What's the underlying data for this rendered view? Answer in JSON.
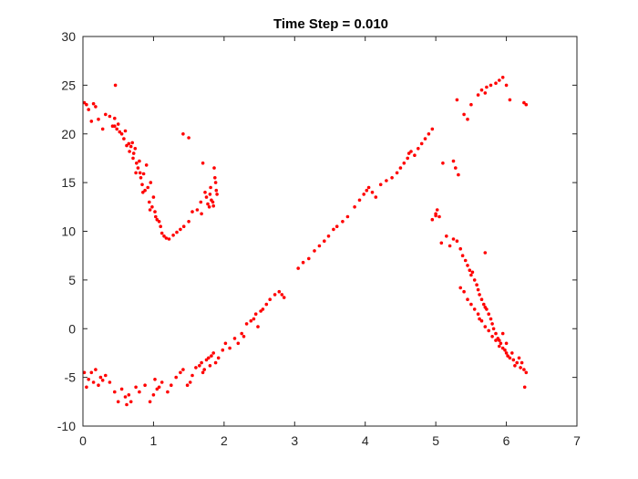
{
  "chart_data": {
    "type": "scatter",
    "title": "Time Step = 0.010",
    "xlabel": "",
    "ylabel": "",
    "xlim": [
      0,
      7
    ],
    "ylim": [
      -10,
      30
    ],
    "xticks": [
      0,
      1,
      2,
      3,
      4,
      5,
      6,
      7
    ],
    "yticks": [
      -10,
      -5,
      0,
      5,
      10,
      15,
      20,
      25,
      30
    ],
    "grid": false,
    "legend": "none",
    "marker_color": "#ff0000",
    "series": [
      {
        "x": [
          0.02,
          0.05,
          0.08,
          0.12,
          0.15,
          0.18,
          0.22,
          0.28,
          0.32,
          0.38,
          0.42,
          0.45,
          0.46,
          0.48,
          0.5,
          0.52,
          0.55,
          0.58,
          0.6,
          0.62,
          0.65,
          0.66,
          0.68,
          0.7,
          0.71,
          0.72,
          0.74,
          0.76,
          0.78,
          0.8,
          0.81,
          0.82,
          0.84,
          0.86,
          0.88,
          0.9,
          0.92,
          0.94,
          0.96,
          0.98,
          1.0,
          1.02,
          1.05,
          1.08,
          1.1,
          1.12,
          1.15,
          1.18,
          1.22,
          1.28,
          1.33,
          1.38,
          1.43,
          1.5,
          1.55,
          1.62,
          1.67,
          1.7,
          1.73,
          1.75,
          1.77,
          1.79,
          1.8,
          1.81,
          1.82,
          1.84,
          1.85,
          1.86,
          1.87,
          1.88,
          1.89,
          1.9,
          0.45,
          1.42,
          1.5,
          1.68,
          0.75,
          0.85,
          0.95,
          1.03
        ],
        "y": [
          23.2,
          23.0,
          22.5,
          21.3,
          23.1,
          22.8,
          21.5,
          20.5,
          22.0,
          21.8,
          20.8,
          21.6,
          25.0,
          20.5,
          21.0,
          20.2,
          20.0,
          19.5,
          20.3,
          18.8,
          19.0,
          18.2,
          18.7,
          19.1,
          17.5,
          18.0,
          18.5,
          17.0,
          16.5,
          17.2,
          16.0,
          15.5,
          14.8,
          15.9,
          14.2,
          16.8,
          14.5,
          13.0,
          15.0,
          12.5,
          13.5,
          12.0,
          11.2,
          11.0,
          10.5,
          9.8,
          9.5,
          9.3,
          9.2,
          9.6,
          9.9,
          10.2,
          10.5,
          11.0,
          12.0,
          12.2,
          13.0,
          17.0,
          14.0,
          13.5,
          12.8,
          12.5,
          13.8,
          14.5,
          13.2,
          13.0,
          12.6,
          16.5,
          15.5,
          15.0,
          14.2,
          13.8,
          20.8,
          20.0,
          19.6,
          11.8,
          16.0,
          14.0,
          12.2,
          11.5
        ]
      },
      {
        "x": [
          0.02,
          0.05,
          0.08,
          0.12,
          0.15,
          0.18,
          0.22,
          0.25,
          0.28,
          0.32,
          0.38,
          0.45,
          0.5,
          0.55,
          0.6,
          0.62,
          0.65,
          0.68,
          0.75,
          0.8,
          0.88,
          0.95,
          1.0,
          1.02,
          1.05,
          1.08,
          1.12,
          1.2,
          1.25,
          1.32,
          1.38,
          1.42,
          1.48,
          1.52,
          1.55,
          1.6,
          1.65,
          1.68,
          1.7,
          1.72,
          1.75,
          1.78,
          1.8,
          1.82,
          1.85,
          1.88,
          1.92,
          1.98,
          2.02,
          2.08,
          2.15,
          2.2,
          2.25,
          2.28,
          2.32,
          2.38,
          2.42,
          2.45,
          2.48,
          2.52,
          2.55,
          2.6,
          2.65,
          2.72,
          2.78,
          2.82,
          2.85,
          3.05,
          3.12,
          3.2,
          3.28,
          3.35,
          3.42,
          3.48,
          3.55,
          3.6,
          3.68,
          3.75,
          3.85,
          3.92,
          3.98,
          4.02,
          4.05,
          4.1,
          4.15,
          4.22,
          4.3,
          4.38,
          4.45,
          4.5,
          4.55,
          4.6,
          4.62,
          4.65,
          4.7,
          4.75,
          4.8,
          4.85,
          4.9,
          4.95
        ],
        "y": [
          -4.5,
          -6.0,
          -5.2,
          -4.5,
          -5.5,
          -4.2,
          -5.8,
          -5.0,
          -5.3,
          -4.8,
          -5.5,
          -6.5,
          -7.5,
          -6.2,
          -7.0,
          -7.8,
          -6.8,
          -7.5,
          -6.0,
          -6.5,
          -5.8,
          -7.5,
          -6.8,
          -5.2,
          -6.2,
          -6.0,
          -5.5,
          -6.5,
          -5.8,
          -5.0,
          -4.5,
          -4.2,
          -5.8,
          -5.5,
          -4.8,
          -4.0,
          -3.8,
          -3.5,
          -4.5,
          -4.2,
          -3.2,
          -3.0,
          -3.8,
          -2.8,
          -2.5,
          -3.5,
          -3.0,
          -2.2,
          -1.5,
          -2.0,
          -1.0,
          -1.5,
          -0.5,
          -0.8,
          0.5,
          0.8,
          1.0,
          1.5,
          0.2,
          1.8,
          2.0,
          2.5,
          3.0,
          3.5,
          3.8,
          3.5,
          3.2,
          6.2,
          6.8,
          7.2,
          8.0,
          8.5,
          9.0,
          9.5,
          10.2,
          10.5,
          11.0,
          11.5,
          12.5,
          13.2,
          13.8,
          14.2,
          14.5,
          14.0,
          13.5,
          14.8,
          15.2,
          15.5,
          16.0,
          16.5,
          17.0,
          17.5,
          18.0,
          18.2,
          17.8,
          18.5,
          19.0,
          19.5,
          20.0,
          20.5
        ]
      },
      {
        "x": [
          5.0,
          5.02,
          5.05,
          5.08,
          5.15,
          5.2,
          5.25,
          5.3,
          5.35,
          5.38,
          5.42,
          5.45,
          5.48,
          5.5,
          5.52,
          5.55,
          5.58,
          5.6,
          5.62,
          5.65,
          5.68,
          5.7,
          5.72,
          5.75,
          5.78,
          5.8,
          5.82,
          5.85,
          5.88,
          5.9,
          5.92,
          5.95,
          5.98,
          6.0,
          6.05,
          6.1,
          6.15,
          6.2,
          6.25,
          6.28,
          5.35,
          5.4,
          5.45,
          5.5,
          5.55,
          5.6,
          5.62,
          5.65,
          5.7,
          5.75,
          5.8,
          5.85,
          5.9,
          5.95,
          6.0,
          6.02,
          6.08,
          6.12,
          6.18,
          6.22,
          6.26,
          4.95,
          5.0,
          5.1,
          5.3,
          5.5,
          5.25,
          5.28,
          5.32,
          5.4,
          5.45,
          5.6,
          5.65,
          5.7,
          5.72,
          5.78,
          5.85,
          5.9,
          5.95,
          6.0,
          6.05,
          6.25,
          6.28,
          5.7
        ],
        "y": [
          11.8,
          12.2,
          11.5,
          8.8,
          9.5,
          8.5,
          9.2,
          9.0,
          8.2,
          7.5,
          7.0,
          6.5,
          6.0,
          5.5,
          5.8,
          5.0,
          4.5,
          4.0,
          3.5,
          3.0,
          2.5,
          2.2,
          2.0,
          1.5,
          1.0,
          0.5,
          0.0,
          -0.5,
          -1.0,
          -1.2,
          -1.5,
          -2.0,
          -2.2,
          -2.5,
          -3.0,
          -3.2,
          -3.5,
          -4.0,
          -4.2,
          -4.5,
          4.2,
          3.8,
          3.0,
          2.5,
          2.0,
          1.5,
          1.0,
          0.8,
          0.2,
          -0.2,
          -0.8,
          -1.2,
          -1.8,
          -0.5,
          -1.5,
          -2.8,
          -2.5,
          -3.8,
          -3.0,
          -3.5,
          -6.0,
          11.2,
          11.6,
          17.0,
          23.5,
          23.0,
          17.2,
          16.5,
          15.8,
          22.0,
          21.5,
          24.0,
          24.5,
          24.2,
          24.8,
          25.0,
          25.2,
          25.5,
          25.8,
          25.0,
          23.5,
          23.2,
          23.0,
          7.8
        ]
      }
    ]
  }
}
